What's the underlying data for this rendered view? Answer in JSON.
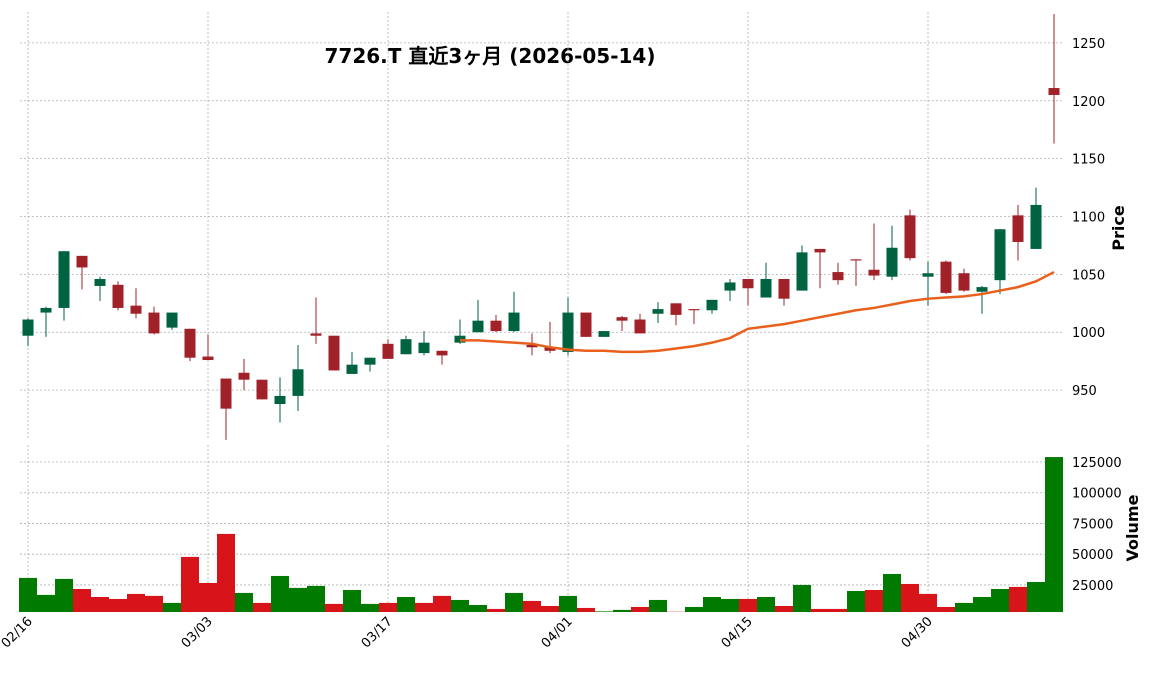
{
  "chart_data": {
    "type": "candlestick",
    "title": "7726.T  直近3ヶ月  (2026-05-14)",
    "categories": [
      "02/16",
      null,
      null,
      null,
      null,
      null,
      null,
      null,
      null,
      null,
      "03/03",
      null,
      null,
      null,
      null,
      null,
      null,
      null,
      null,
      null,
      "03/17",
      null,
      null,
      null,
      null,
      null,
      null,
      null,
      null,
      null,
      "04/01",
      null,
      null,
      null,
      null,
      null,
      null,
      null,
      null,
      null,
      "04/15",
      null,
      null,
      null,
      null,
      null,
      null,
      null,
      null,
      null,
      "04/30",
      null,
      null,
      null,
      null,
      null,
      null,
      null
    ],
    "open": [
      997,
      1017,
      1021,
      1066,
      1040,
      1041,
      1023,
      1017,
      1004,
      1003,
      979,
      960,
      965,
      959,
      938,
      945,
      999,
      997,
      964,
      972,
      990,
      981,
      982,
      984,
      991,
      1000,
      1010,
      1001,
      989,
      987,
      983,
      1017,
      996,
      1013,
      1011,
      1016,
      1025,
      1020,
      1019,
      1036,
      1046,
      1030,
      1046,
      1036,
      1072,
      1052,
      1063,
      1054,
      1048,
      1101,
      1048,
      1061,
      1051,
      1035,
      1045,
      1101,
      1072,
      1211
    ],
    "high": [
      1012,
      1022,
      1070,
      1066,
      1048,
      1044,
      1038,
      1022,
      1017,
      1003,
      998,
      960,
      977,
      959,
      961,
      989,
      1030,
      997,
      983,
      978,
      994,
      997,
      1001,
      984,
      1011,
      1028,
      1015,
      1035,
      999,
      1009,
      1030,
      1017,
      1001,
      1014,
      1016,
      1026,
      1025,
      1020,
      1028,
      1046,
      1046,
      1060,
      1046,
      1075,
      1072,
      1060,
      1063,
      1094,
      1092,
      1106,
      1061,
      1062,
      1055,
      1040,
      1089,
      1110,
      1125,
      1275
    ],
    "low": [
      988,
      996,
      1010,
      1037,
      1027,
      1019,
      1012,
      998,
      1002,
      975,
      976,
      907,
      950,
      942,
      922,
      932,
      990,
      967,
      964,
      966,
      977,
      981,
      980,
      972,
      990,
      1000,
      1000,
      1000,
      980,
      982,
      980,
      996,
      996,
      1001,
      999,
      1008,
      1006,
      1007,
      1016,
      1027,
      1023,
      1030,
      1023,
      1036,
      1038,
      1041,
      1040,
      1045,
      1045,
      1062,
      1023,
      1033,
      1035,
      1016,
      1033,
      1062,
      1072,
      1163
    ],
    "close": [
      1011,
      1021,
      1070,
      1056,
      1046,
      1021,
      1016,
      999,
      1017,
      978,
      976,
      934,
      959,
      942,
      945,
      968,
      997,
      967,
      972,
      978,
      977,
      994,
      991,
      980,
      997,
      1010,
      1001,
      1017,
      987,
      984,
      1017,
      996,
      1001,
      1010,
      999,
      1020,
      1015,
      1019,
      1028,
      1043,
      1038,
      1046,
      1029,
      1069,
      1069,
      1045,
      1062,
      1049,
      1073,
      1064,
      1051,
      1034,
      1036,
      1039,
      1089,
      1078,
      1110,
      1205
    ],
    "ma": [
      null,
      null,
      null,
      null,
      null,
      null,
      null,
      null,
      null,
      null,
      null,
      null,
      null,
      null,
      null,
      null,
      null,
      null,
      null,
      null,
      null,
      null,
      null,
      null,
      993,
      993,
      992,
      991,
      990,
      987,
      985,
      984,
      984,
      983,
      983,
      984,
      986,
      988,
      991,
      995,
      1003,
      1005,
      1007,
      1010,
      1013,
      1016,
      1019,
      1021,
      1024,
      1027,
      1029,
      1030,
      1031,
      1033,
      1036,
      1039,
      1044,
      1052
    ],
    "volume": [
      30700,
      16900,
      29900,
      21700,
      15200,
      13600,
      17700,
      16100,
      10400,
      47800,
      26600,
      66500,
      18500,
      10400,
      32300,
      22600,
      24200,
      9600,
      20900,
      9600,
      10400,
      15200,
      10400,
      16100,
      12800,
      8700,
      5500,
      18500,
      12000,
      7900,
      16100,
      6300,
      3500,
      4700,
      7100,
      12800,
      3200,
      7100,
      15200,
      13600,
      13600,
      15200,
      7900,
      25000,
      5500,
      5500,
      20100,
      20900,
      33900,
      25800,
      17700,
      7100,
      10400,
      15200,
      21700,
      23400,
      27400,
      129000
    ],
    "up_color": "#006340",
    "down_color": "#a02128",
    "ma_color": "#e8601c",
    "volume_up_color": "#007a00",
    "volume_down_color": "#d7141a",
    "ylabel": "Price",
    "ylim": [
      906.9,
      1276.7
    ],
    "yticks": [
      950,
      1000,
      1050,
      1100,
      1150,
      1200,
      1250
    ],
    "y2label": "Volume",
    "y2lim": [
      3000,
      138800
    ],
    "y2ticks": [
      25000,
      50000,
      75000,
      100000,
      125000
    ],
    "grid": true
  }
}
